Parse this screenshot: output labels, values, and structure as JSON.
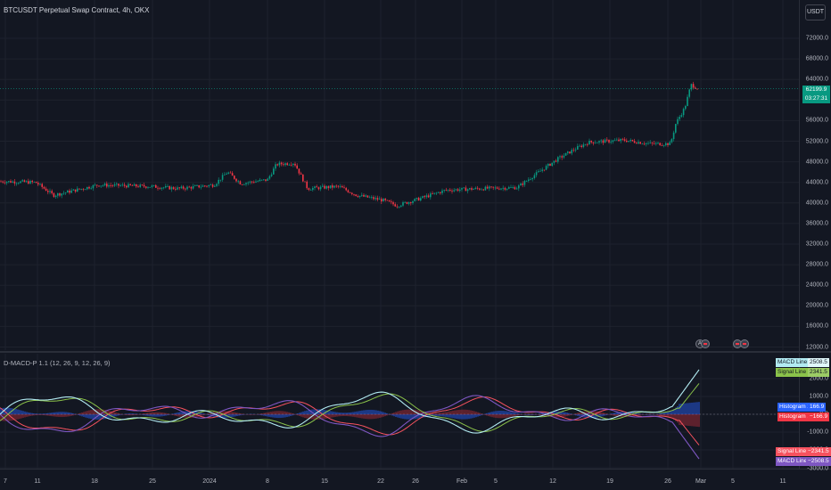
{
  "chart": {
    "title": "BTCUSDT Perpetual Swap Contract, 4h, OKX",
    "currency_label": "USDT",
    "price_axis_labels": [
      "72000.0",
      "68000.0",
      "64000.0",
      "60000.0",
      "56000.0",
      "52000.0",
      "48000.0",
      "44000.0",
      "40000.0",
      "36000.0",
      "32000.0",
      "28000.0",
      "24000.0",
      "20000.0",
      "16000.0",
      "12000.0"
    ],
    "last_price": "62199.9",
    "countdown": "03:27:31",
    "time_axis_labels": [
      "7",
      "11",
      "18",
      "25",
      "2024",
      "8",
      "15",
      "22",
      "26",
      "Feb",
      "5",
      "12",
      "19",
      "26",
      "Mar",
      "5",
      "11"
    ],
    "price_series_colors": {
      "up": "#089981",
      "down": "#f23645"
    }
  },
  "indicator": {
    "title": "D-MACD-P 1.1 (12, 26, 9, 12, 26, 9)",
    "axis_labels": [
      "2000.0",
      "1000.0",
      "0.0",
      "-1000.0",
      "-2000.0",
      "-3000.0"
    ],
    "tags": {
      "macd2": {
        "label": "MACD Line 2",
        "value": "2508.5",
        "color": "#b2ebf2"
      },
      "signal2": {
        "label": "Signal Line 2",
        "value": "2341.5",
        "color": "#8bc34a"
      },
      "hist2": {
        "label": "Histogram 2",
        "value": "166.9",
        "color": "#2962ff"
      },
      "hist1": {
        "label": "Histogram 1",
        "value": "−166.9",
        "color": "#f23645"
      },
      "signal1": {
        "label": "Signal Line 1",
        "value": "−2341.5",
        "color": "#f7525f"
      },
      "macd1": {
        "label": "MACD Line 1",
        "value": "−2508.5",
        "color": "#7e57c2"
      }
    }
  }
}
